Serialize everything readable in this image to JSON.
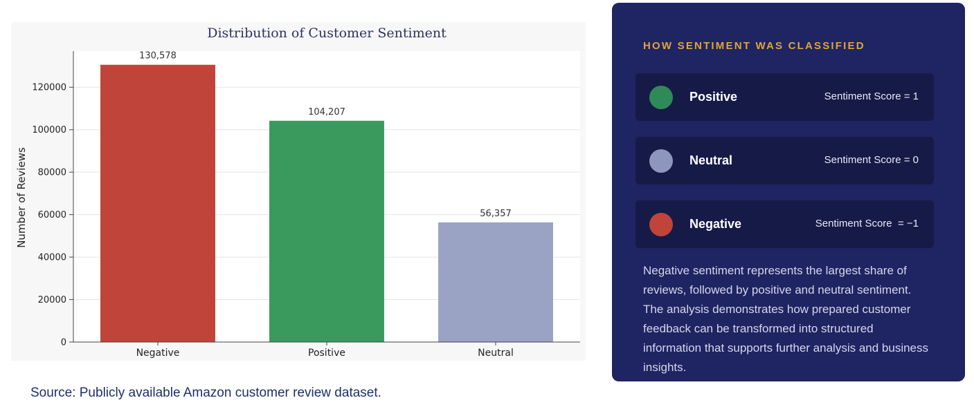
{
  "chart_data": {
    "type": "bar",
    "title": "Distribution of Customer Sentiment",
    "xlabel": "",
    "ylabel": "Number of Reviews",
    "categories": [
      "Negative",
      "Positive",
      "Neutral"
    ],
    "values": [
      130578,
      104207,
      56357
    ],
    "value_labels": [
      "130,578",
      "104,207",
      "56,357"
    ],
    "colors": [
      "#c0443a",
      "#3a9a5e",
      "#9aa3c4"
    ],
    "ylim": [
      0,
      137000
    ],
    "yticks": [
      0,
      20000,
      40000,
      60000,
      80000,
      100000,
      120000
    ],
    "grid": true,
    "legend": false
  },
  "source_note": "Source: Publicly available Amazon customer review dataset.",
  "classification": {
    "heading": "HOW SENTIMENT WAS CLASSIFIED",
    "items": [
      {
        "name": "Positive",
        "score_text": "Sentiment Score = 1",
        "color": "#2e8b57"
      },
      {
        "name": "Neutral",
        "score_text": "Sentiment Score = 0",
        "color": "#8f96bd"
      },
      {
        "name": "Negative",
        "score_text": "Sentiment Score  = −1",
        "color": "#c0443a"
      }
    ],
    "summary": "Negative sentiment represents the largest share of reviews, followed by positive and neutral sentiment. The analysis demonstrates how prepared customer feedback can be transformed into structured information that supports further analysis and business insights."
  }
}
